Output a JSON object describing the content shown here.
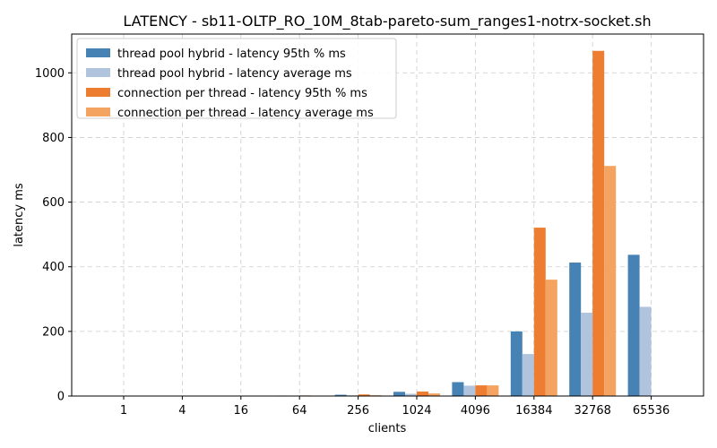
{
  "chart_data": {
    "type": "bar",
    "title": "LATENCY - sb11-OLTP_RO_10M_8tab-pareto-sum_ranges1-notrx-socket.sh",
    "xlabel": "clients",
    "ylabel": "latency ms",
    "categories": [
      "1",
      "4",
      "16",
      "64",
      "256",
      "1024",
      "4096",
      "16384",
      "32768",
      "65536"
    ],
    "ylim": [
      0,
      1120
    ],
    "yticks": [
      0,
      200,
      400,
      600,
      800,
      1000
    ],
    "grid": true,
    "legend_position": "top-left",
    "series": [
      {
        "name": "thread pool hybrid - latency 95th % ms",
        "color": "#4682b4",
        "values": [
          0.2,
          0.3,
          0.5,
          1.5,
          4,
          13,
          43,
          200,
          413,
          437
        ]
      },
      {
        "name": "thread pool hybrid - latency average ms",
        "color": "#b0c4de",
        "values": [
          0.1,
          0.2,
          0.3,
          0.8,
          2,
          7,
          32,
          130,
          258,
          276
        ]
      },
      {
        "name": "connection per thread - latency 95th % ms",
        "color": "#ed7d31",
        "values": [
          0.2,
          0.3,
          0.6,
          1.8,
          5,
          14,
          33,
          521,
          1068,
          0
        ]
      },
      {
        "name": "connection per thread - latency average ms",
        "color": "#f4a460",
        "values": [
          0.1,
          0.2,
          0.3,
          0.9,
          2.5,
          8,
          33,
          360,
          712,
          0
        ]
      }
    ]
  }
}
